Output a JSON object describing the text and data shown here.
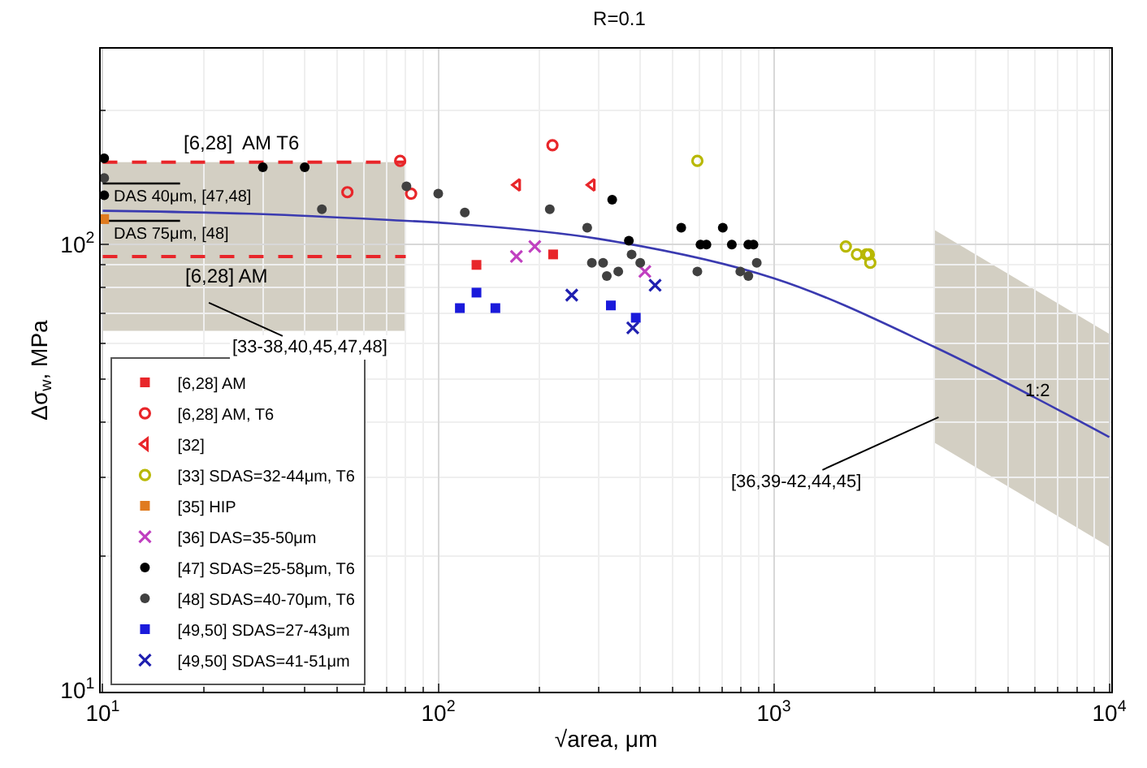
{
  "chart_data": {
    "type": "scatter",
    "title": "R=0.1",
    "xlabel": "√area, μm",
    "ylabel": "Δσ$_{w}$, MPa",
    "log": "xy",
    "grid": true,
    "legend": "bottom left",
    "xlim": [
      10,
      10000
    ],
    "ylim": [
      10,
      273
    ],
    "xticks": [
      {
        "value": 10,
        "label": "10$^{1}$"
      },
      {
        "value": 100,
        "label": "10$^{2}$"
      },
      {
        "value": 1000,
        "label": "10$^{3}$"
      },
      {
        "value": 10000,
        "label": "10$^{4}$"
      }
    ],
    "yticks": [
      {
        "value": 10,
        "label": "10$^{1}$"
      },
      {
        "value": 100,
        "label": "10$^{2}$"
      }
    ],
    "series": [
      {
        "type": "line",
        "color": "#e8262a",
        "line_style": "dashed",
        "x": [
          10,
          80
        ],
        "values": [
          153,
          153
        ]
      },
      {
        "type": "line",
        "color": "#e8262a",
        "line_style": "dashed",
        "x": [
          10,
          80
        ],
        "values": [
          94,
          94
        ]
      },
      {
        "type": "line",
        "color": "#000000",
        "line_style": "solid",
        "x": [
          10,
          17
        ],
        "values": [
          137,
          137
        ]
      },
      {
        "type": "line",
        "color": "#000000",
        "line_style": "solid",
        "x": [
          10,
          17
        ],
        "values": [
          113,
          113
        ]
      },
      {
        "type": "line",
        "color": "#3a3ab0",
        "line_style": "solid",
        "x": [
          10,
          30,
          80,
          100,
          300,
          1000,
          3000,
          10000
        ],
        "values": [
          119,
          117,
          113,
          112,
          103,
          84,
          59,
          37
        ],
        "lower": [
          64,
          64,
          64,
          null,
          null,
          null,
          36,
          21
        ],
        "upper": [
          153,
          153,
          153,
          null,
          null,
          null,
          108,
          63
        ]
      },
      {
        "name": "[6,28] AM",
        "marker": "square",
        "color": "#e8262a",
        "x": [
          130,
          220
        ],
        "values": [
          90,
          95
        ]
      },
      {
        "name": "[6,28] AM, T6",
        "marker": "circle-open",
        "color": "#e8262a",
        "x": [
          53.6,
          77,
          83,
          219
        ],
        "values": [
          131,
          154,
          130,
          167
        ]
      },
      {
        "name": "[32]",
        "marker": "triangle-open",
        "color": "#e8262a",
        "x": [
          172,
          287
        ],
        "values": [
          136,
          136
        ]
      },
      {
        "name": "[33] SDAS=32-44μm, T6",
        "marker": "circle-open",
        "color": "#b8b800",
        "x": [
          592,
          1640,
          1770,
          1890,
          1920,
          1940
        ],
        "values": [
          154,
          99,
          95,
          95,
          95,
          91
        ]
      },
      {
        "name": "[35] HIP",
        "marker": "square",
        "color": "#e07b20",
        "x": [
          10.1
        ],
        "values": [
          114
        ]
      },
      {
        "name": "[36] DAS=35-50μm",
        "marker": "cross",
        "color": "#c040c0",
        "x": [
          171,
          194,
          413
        ],
        "values": [
          94,
          99,
          87
        ]
      },
      {
        "name": "[47] SDAS=25-58μm, T6",
        "marker": "circle",
        "color": "#000000",
        "x": [
          10.1,
          10.1,
          30,
          40,
          330,
          370,
          530,
          605,
          630,
          705,
          750,
          840,
          870
        ],
        "values": [
          156,
          129,
          149,
          149,
          126,
          102,
          109,
          100,
          100,
          109,
          100,
          100,
          100
        ]
      },
      {
        "name": "[48] SDAS=40-70μm, T6",
        "marker": "circle",
        "color": "#404040",
        "x": [
          10.1,
          45,
          80.4,
          100,
          120,
          215,
          278,
          287,
          310,
          318,
          344,
          377,
          400,
          592,
          795,
          840,
          890
        ],
        "values": [
          141,
          120,
          135,
          130,
          118,
          120,
          109,
          91,
          91,
          85,
          87,
          95,
          91,
          87,
          87,
          85,
          91
        ]
      },
      {
        "name": "[49,50] SDAS=27-43μm",
        "marker": "square",
        "color": "#1a1adb",
        "x": [
          116,
          130,
          148,
          327,
          388
        ],
        "values": [
          72,
          78,
          72,
          73,
          68.5
        ]
      },
      {
        "name": "[49,50] SDAS=41-51μm",
        "marker": "cross",
        "color": "#2020b0",
        "x": [
          250,
          380,
          443
        ],
        "values": [
          77,
          65,
          81
        ]
      }
    ],
    "annotations": [
      {
        "text": "[6,28]  AM T6",
        "x": 26,
        "y": 153
      },
      {
        "text": "[6,28] AM",
        "x": 23.5,
        "y": 94
      },
      {
        "text": "DAS 40μm, [47,48]",
        "x": 10,
        "y": 137
      },
      {
        "text": "DAS 75μm, [48]",
        "x": 10,
        "y": 113
      },
      "[33-38,40,45,47,48]",
      {
        "text": "[36,39-42,44,45]",
        "x": 3100,
        "y": 41
      },
      {
        "text": "1:2",
        "x": 6100,
        "y": 47
      }
    ]
  }
}
